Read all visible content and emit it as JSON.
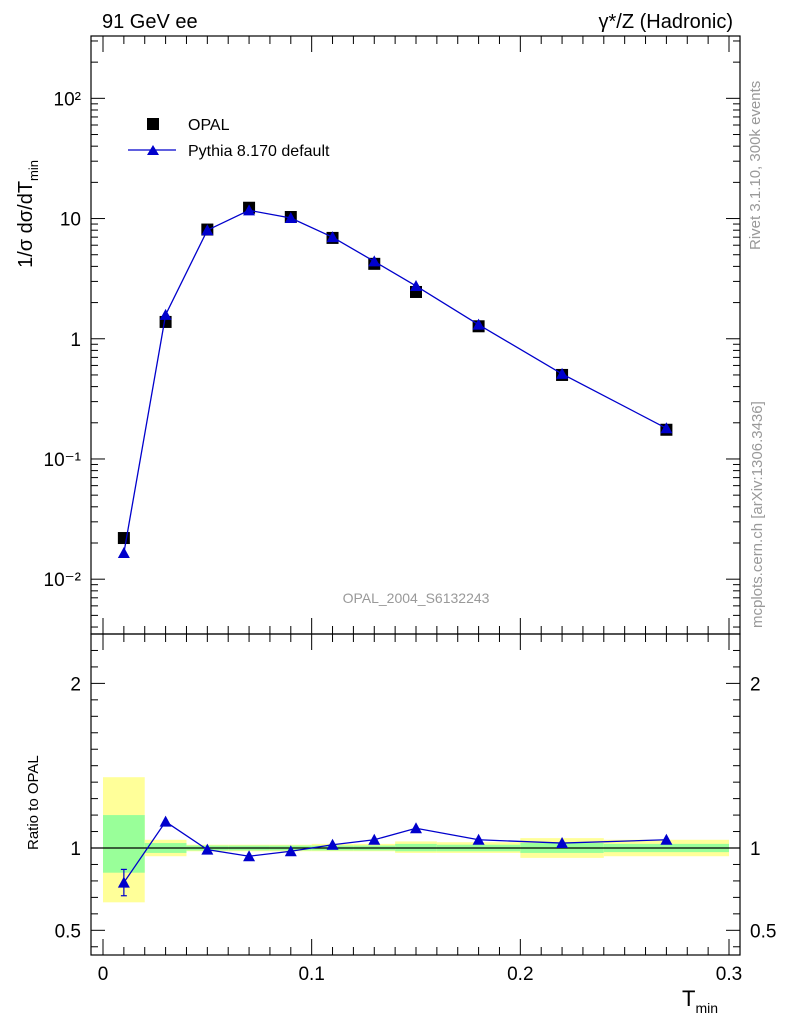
{
  "header": {
    "left": "91 GeV ee",
    "right": "γ*/Z (Hadronic)"
  },
  "side_labels": {
    "rivet": "Rivet 3.1.10,  300k events",
    "mcplots": "mcplots.cern.ch [arXiv:1306.3436]"
  },
  "watermark": "OPAL_2004_S6132243",
  "main_ylabel": "1/σ dσ/dT",
  "main_ylabel_sub": "min",
  "ratio_ylabel": "Ratio to OPAL",
  "xlabel": "T",
  "xlabel_sub": "min",
  "legend": {
    "data": "OPAL",
    "mc": "Pythia 8.170 default"
  },
  "colors": {
    "data": "#000000",
    "mc": "#0000cc",
    "band_inner": "#99ff99",
    "band_outer": "#ffff99"
  },
  "chart_data": [
    {
      "type": "scatter",
      "panel": "main",
      "yscale": "log",
      "xlim": [
        0,
        0.3
      ],
      "ylim": [
        0.0035,
        330
      ],
      "x_ticks": [
        0,
        0.1,
        0.2,
        0.3
      ],
      "y_tick_labels": [
        "10⁻²",
        "10⁻¹",
        "1",
        "10",
        "10²"
      ],
      "series": [
        {
          "name": "OPAL",
          "x": [
            0.01,
            0.03,
            0.05,
            0.07,
            0.09,
            0.11,
            0.13,
            0.15,
            0.18,
            0.22,
            0.27
          ],
          "y": [
            0.022,
            1.38,
            8.1,
            12.3,
            10.3,
            6.9,
            4.2,
            2.45,
            1.27,
            0.5,
            0.175
          ]
        },
        {
          "name": "Pythia 8.170 default",
          "x": [
            0.01,
            0.03,
            0.05,
            0.07,
            0.09,
            0.11,
            0.13,
            0.15,
            0.18,
            0.22,
            0.27
          ],
          "y": [
            0.0165,
            1.58,
            8.0,
            11.7,
            10.1,
            7.0,
            4.4,
            2.75,
            1.31,
            0.51,
            0.18
          ]
        }
      ]
    },
    {
      "type": "line",
      "panel": "ratio",
      "ylabel": "Ratio to OPAL",
      "xlim": [
        0,
        0.3
      ],
      "ylim": [
        0.35,
        2.3
      ],
      "y_ticks": [
        0.5,
        1,
        2
      ],
      "x_ticks": [
        0,
        0.1,
        0.2,
        0.3
      ],
      "bins": [
        [
          0,
          0.02
        ],
        [
          0.02,
          0.04
        ],
        [
          0.04,
          0.06
        ],
        [
          0.06,
          0.08
        ],
        [
          0.08,
          0.1
        ],
        [
          0.1,
          0.12
        ],
        [
          0.12,
          0.14
        ],
        [
          0.14,
          0.16
        ],
        [
          0.16,
          0.2
        ],
        [
          0.2,
          0.24
        ],
        [
          0.24,
          0.3
        ]
      ],
      "band_inner": [
        [
          0.85,
          1.2
        ],
        [
          0.97,
          1.03
        ],
        [
          0.985,
          1.015
        ],
        [
          0.985,
          1.015
        ],
        [
          0.985,
          1.015
        ],
        [
          0.985,
          1.015
        ],
        [
          0.985,
          1.015
        ],
        [
          0.98,
          1.025
        ],
        [
          0.98,
          1.02
        ],
        [
          0.97,
          1.03
        ],
        [
          0.975,
          1.025
        ]
      ],
      "band_outer": [
        [
          0.67,
          1.43
        ],
        [
          0.95,
          1.05
        ],
        [
          0.98,
          1.02
        ],
        [
          0.98,
          1.02
        ],
        [
          0.98,
          1.02
        ],
        [
          0.98,
          1.025
        ],
        [
          0.98,
          1.025
        ],
        [
          0.97,
          1.04
        ],
        [
          0.97,
          1.035
        ],
        [
          0.94,
          1.06
        ],
        [
          0.95,
          1.05
        ]
      ],
      "series": [
        {
          "name": "Pythia 8.170 default",
          "x": [
            0.01,
            0.03,
            0.05,
            0.07,
            0.09,
            0.11,
            0.13,
            0.15,
            0.18,
            0.22,
            0.27
          ],
          "y": [
            0.79,
            1.16,
            0.99,
            0.95,
            0.98,
            1.02,
            1.05,
            1.12,
            1.05,
            1.03,
            1.05
          ],
          "err": [
            0.08,
            0,
            0,
            0,
            0,
            0,
            0,
            0,
            0,
            0,
            0
          ]
        }
      ]
    }
  ]
}
